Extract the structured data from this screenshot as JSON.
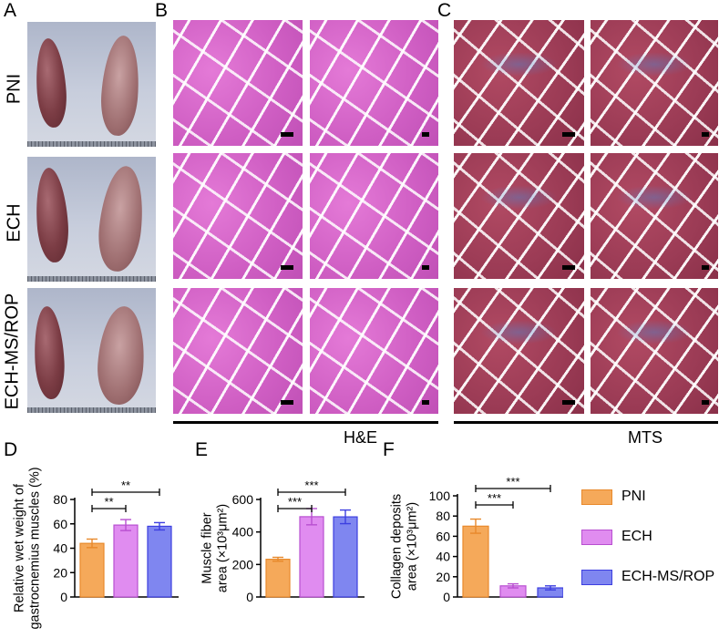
{
  "panels": {
    "A": "A",
    "B": "B",
    "C": "C",
    "D": "D",
    "E": "E",
    "F": "F"
  },
  "rows": [
    "PNI",
    "ECH",
    "ECH-MS/ROP"
  ],
  "stain_labels": {
    "he": "H&E",
    "mts": "MTS"
  },
  "colors": {
    "PNI": "#f5a95a",
    "ECH": "#e08cf0",
    "ECH_MS_ROP": "#7f86f0",
    "PNI_edge": "#e8892b",
    "ECH_edge": "#b84fd0",
    "ECH_MS_ROP_edge": "#3d3fe0"
  },
  "chart_data": [
    {
      "id": "D",
      "type": "bar",
      "categories": [
        "PNI",
        "ECH",
        "ECH-MS/ROP"
      ],
      "values": [
        44,
        59,
        58
      ],
      "errors": [
        3.5,
        4.5,
        3
      ],
      "ylabel_lines": [
        "Relative wet weight of",
        "gastrocnemius muscles (%)"
      ],
      "ylim": [
        0,
        80
      ],
      "yticks": [
        "0",
        "20",
        "40",
        "60",
        "80"
      ],
      "significance": [
        {
          "from": 0,
          "to": 1,
          "label": "**"
        },
        {
          "from": 0,
          "to": 2,
          "label": "**"
        }
      ]
    },
    {
      "id": "E",
      "type": "bar",
      "categories": [
        "PNI",
        "ECH",
        "ECH-MS/ROP"
      ],
      "values": [
        232,
        494,
        493
      ],
      "errors": [
        12,
        50,
        42
      ],
      "ylabel_lines": [
        "Muscle fiber",
        "area (×10³μm²)"
      ],
      "ylim": [
        0,
        600
      ],
      "yticks": [
        "0",
        "200",
        "400",
        "600"
      ],
      "significance": [
        {
          "from": 0,
          "to": 1,
          "label": "***"
        },
        {
          "from": 0,
          "to": 2,
          "label": "***"
        }
      ]
    },
    {
      "id": "F",
      "type": "bar",
      "categories": [
        "PNI",
        "ECH",
        "ECH-MS/ROP"
      ],
      "values": [
        70,
        11,
        9
      ],
      "errors": [
        7,
        2,
        2
      ],
      "ylabel_lines": [
        "Collagen deposits",
        "area (×10³μm²)"
      ],
      "ylim": [
        0,
        100
      ],
      "yticks": [
        "0",
        "20",
        "40",
        "60",
        "80",
        "100"
      ],
      "significance": [
        {
          "from": 0,
          "to": 1,
          "label": "***"
        },
        {
          "from": 0,
          "to": 2,
          "label": "***"
        }
      ]
    }
  ],
  "legend": [
    "PNI",
    "ECH",
    "ECH-MS/ROP"
  ]
}
